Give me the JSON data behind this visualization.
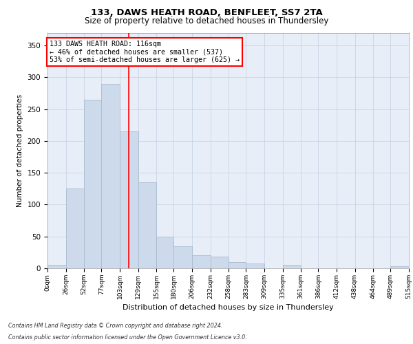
{
  "title1": "133, DAWS HEATH ROAD, BENFLEET, SS7 2TA",
  "title2": "Size of property relative to detached houses in Thundersley",
  "xlabel": "Distribution of detached houses by size in Thundersley",
  "ylabel": "Number of detached properties",
  "footnote1": "Contains HM Land Registry data © Crown copyright and database right 2024.",
  "footnote2": "Contains public sector information licensed under the Open Government Licence v3.0.",
  "annotation_line1": "133 DAWS HEATH ROAD: 116sqm",
  "annotation_line2": "← 46% of detached houses are smaller (537)",
  "annotation_line3": "53% of semi-detached houses are larger (625) →",
  "bar_color": "#ccdaeb",
  "bar_edge_color": "#aabbd0",
  "grid_color": "#c8d4e4",
  "bg_color": "#e8eef8",
  "red_line_x": 116,
  "bin_edges": [
    0,
    26,
    52,
    77,
    103,
    129,
    155,
    180,
    206,
    232,
    258,
    283,
    309,
    335,
    361,
    386,
    412,
    438,
    464,
    489,
    515
  ],
  "bin_labels": [
    "0sqm",
    "26sqm",
    "52sqm",
    "77sqm",
    "103sqm",
    "129sqm",
    "155sqm",
    "180sqm",
    "206sqm",
    "232sqm",
    "258sqm",
    "283sqm",
    "309sqm",
    "335sqm",
    "361sqm",
    "386sqm",
    "412sqm",
    "438sqm",
    "464sqm",
    "489sqm",
    "515sqm"
  ],
  "bar_heights": [
    5,
    125,
    265,
    290,
    215,
    135,
    50,
    35,
    20,
    18,
    10,
    8,
    0,
    5,
    0,
    0,
    0,
    0,
    0,
    3
  ],
  "ylim": [
    0,
    370
  ],
  "yticks": [
    0,
    50,
    100,
    150,
    200,
    250,
    300,
    350
  ]
}
